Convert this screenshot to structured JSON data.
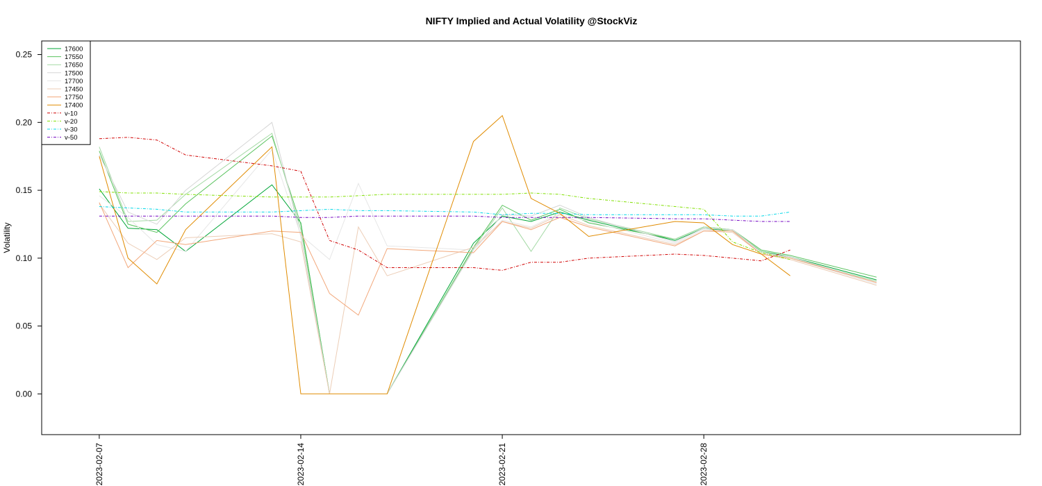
{
  "chart_data": {
    "type": "line",
    "title": "NIFTY Implied and Actual Volatility @StockViz",
    "xlabel": "",
    "ylabel": "Volatility",
    "ylim": [
      -0.03,
      0.26
    ],
    "yticks": [
      "0.00",
      "0.05",
      "0.10",
      "0.15",
      "0.20",
      "0.25"
    ],
    "ytick_values": [
      0.0,
      0.05,
      0.1,
      0.15,
      0.2,
      0.25
    ],
    "xlim": [
      "2023-02-05",
      "2023-03-11"
    ],
    "xticks": [
      "2023-02-07",
      "2023-02-14",
      "2023-02-21",
      "2023-02-28"
    ],
    "dates": [
      "2023-02-07",
      "2023-02-08",
      "2023-02-09",
      "2023-02-10",
      "2023-02-13",
      "2023-02-14",
      "2023-02-15",
      "2023-02-16",
      "2023-02-17",
      "2023-02-20",
      "2023-02-21",
      "2023-02-22",
      "2023-02-23",
      "2023-02-24",
      "2023-02-27",
      "2023-02-28",
      "2023-03-01",
      "2023-03-02",
      "2023-03-03",
      "2023-03-06",
      "2023-03-08"
    ],
    "legend_position": "top-left",
    "grid": false,
    "series": [
      {
        "name": "17600",
        "color": "#00a637",
        "dash": "",
        "values": [
          0.151,
          0.122,
          0.121,
          0.105,
          0.154,
          0.126,
          0.0,
          null,
          0.0,
          0.111,
          0.131,
          0.127,
          0.134,
          0.128,
          0.113,
          0.122,
          0.12,
          0.105,
          0.101,
          0.084,
          null
        ]
      },
      {
        "name": "17550",
        "color": "#58c25d",
        "dash": "",
        "values": [
          0.179,
          0.125,
          0.119,
          0.14,
          0.19,
          0.125,
          0.0,
          null,
          0.0,
          0.108,
          0.139,
          0.128,
          0.136,
          0.126,
          0.114,
          0.123,
          0.121,
          0.106,
          0.102,
          0.086,
          null
        ]
      },
      {
        "name": "17650",
        "color": "#a3d9a4",
        "dash": "",
        "values": [
          0.182,
          0.127,
          0.128,
          0.147,
          0.192,
          0.121,
          0.0,
          null,
          0.0,
          0.107,
          0.137,
          0.105,
          0.137,
          0.129,
          0.114,
          0.123,
          0.121,
          0.105,
          0.1,
          0.083,
          null
        ]
      },
      {
        "name": "17500",
        "color": "#d6d6d6",
        "dash": "",
        "values": [
          0.176,
          0.134,
          0.125,
          0.15,
          0.2,
          0.116,
          0.0,
          null,
          0.0,
          0.106,
          0.132,
          0.131,
          0.139,
          0.13,
          0.112,
          0.122,
          0.121,
          0.104,
          0.101,
          0.082,
          null
        ]
      },
      {
        "name": "17700",
        "color": "#e6e6e6",
        "dash": "",
        "values": [
          0.146,
          0.13,
          0.11,
          0.105,
          0.18,
          0.117,
          0.099,
          0.155,
          0.109,
          0.106,
          0.128,
          0.123,
          0.133,
          0.127,
          0.111,
          0.121,
          0.12,
          0.104,
          0.1,
          0.081,
          null
        ]
      },
      {
        "name": "17450",
        "color": "#eccdb6",
        "dash": "",
        "values": [
          0.14,
          0.111,
          0.099,
          0.115,
          0.118,
          0.112,
          0.0,
          0.123,
          0.087,
          0.108,
          0.127,
          0.122,
          0.132,
          0.124,
          0.11,
          0.12,
          0.119,
          0.103,
          0.099,
          0.08,
          null
        ]
      },
      {
        "name": "17750",
        "color": "#f2a77a",
        "dash": "",
        "values": [
          0.141,
          0.093,
          0.113,
          0.11,
          0.12,
          0.119,
          0.074,
          0.058,
          0.107,
          0.104,
          0.127,
          0.121,
          0.13,
          0.123,
          0.109,
          0.12,
          0.12,
          0.103,
          0.1,
          0.082,
          null
        ]
      },
      {
        "name": "17400",
        "color": "#e08b00",
        "dash": "",
        "values": [
          0.175,
          0.1,
          0.081,
          0.121,
          0.182,
          0.0,
          0.0,
          0.0,
          0.0,
          0.186,
          0.205,
          0.144,
          0.133,
          0.116,
          0.127,
          0.126,
          0.11,
          0.103,
          0.087,
          null,
          null
        ]
      },
      {
        "name": "v-10",
        "color": "#d00000",
        "dash": "4,2,1,2",
        "values": [
          0.188,
          0.189,
          0.187,
          0.176,
          0.168,
          0.164,
          0.113,
          0.106,
          0.093,
          0.093,
          0.091,
          0.097,
          0.097,
          0.1,
          0.103,
          0.102,
          0.1,
          0.098,
          0.106,
          null,
          null
        ]
      },
      {
        "name": "v-20",
        "color": "#80e000",
        "dash": "4,2,1,2",
        "values": [
          0.149,
          0.148,
          0.148,
          0.147,
          0.145,
          0.145,
          0.145,
          0.146,
          0.147,
          0.147,
          0.147,
          0.148,
          0.147,
          0.144,
          0.138,
          0.136,
          0.112,
          0.104,
          0.099,
          null,
          null
        ]
      },
      {
        "name": "v-30",
        "color": "#00d8e8",
        "dash": "4,2,1,2",
        "values": [
          0.138,
          0.137,
          0.136,
          0.134,
          0.134,
          0.135,
          0.136,
          0.135,
          0.135,
          0.134,
          0.132,
          0.133,
          0.133,
          0.132,
          0.132,
          0.132,
          0.131,
          0.131,
          0.134,
          null,
          null
        ]
      },
      {
        "name": "v-50",
        "color": "#7000c0",
        "dash": "4,2,1,2",
        "values": [
          0.131,
          0.131,
          0.131,
          0.131,
          0.131,
          0.13,
          0.13,
          0.131,
          0.131,
          0.131,
          0.13,
          0.13,
          0.13,
          0.13,
          0.129,
          0.129,
          0.128,
          0.127,
          0.127,
          null,
          null
        ]
      }
    ]
  }
}
